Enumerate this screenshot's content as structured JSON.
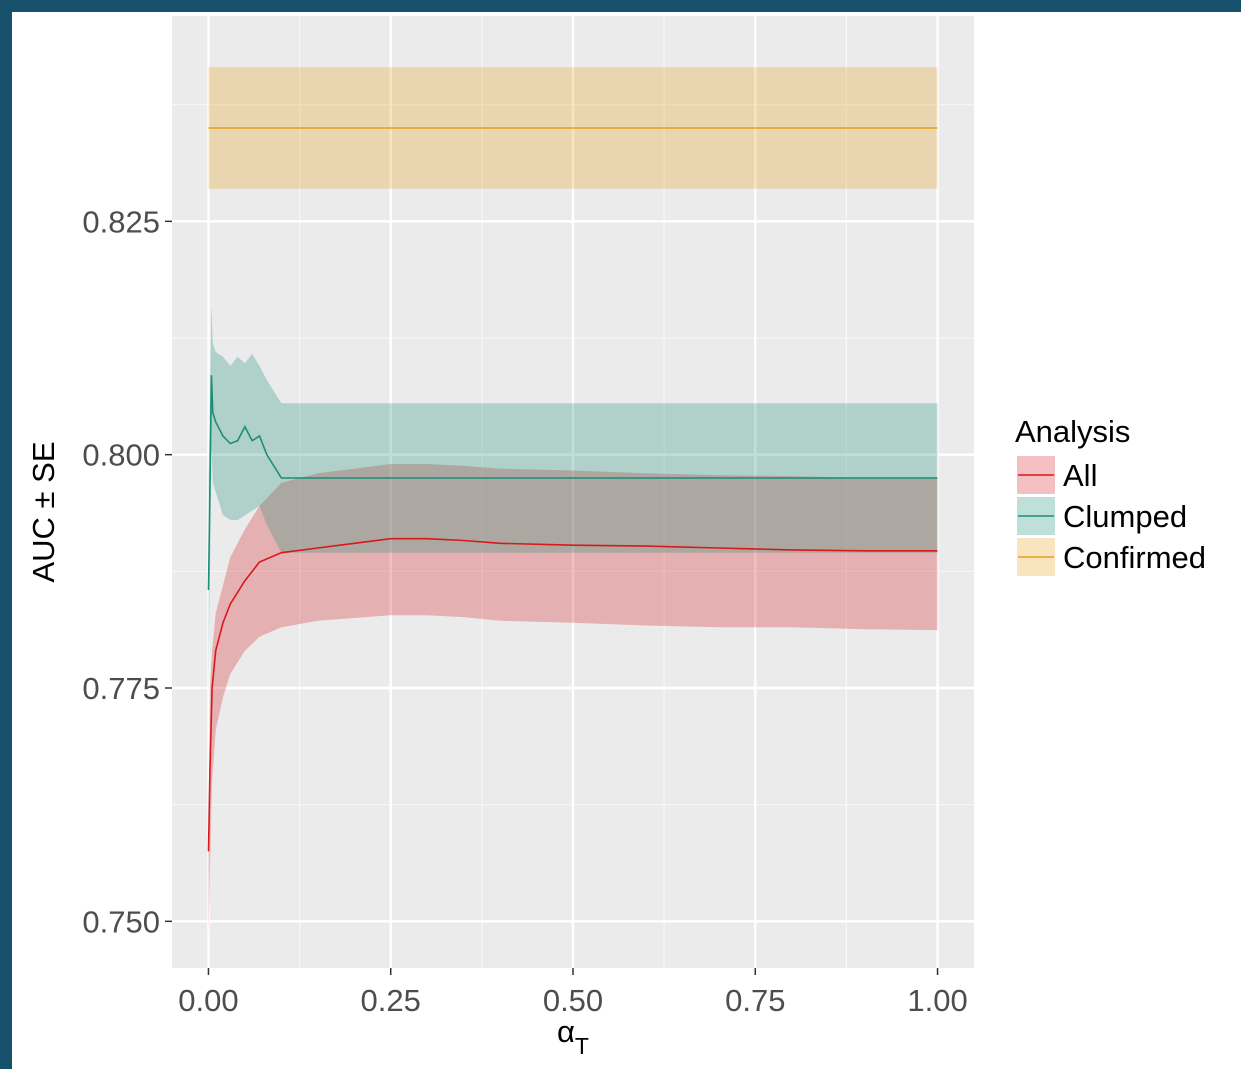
{
  "chart_data": {
    "type": "line",
    "title": "",
    "xlabel": "α",
    "xlabel_subscript": "T",
    "ylabel": "AUC ± SE",
    "xlim": [
      -0.05,
      1.05
    ],
    "ylim": [
      0.745,
      0.847
    ],
    "x_ticks": [
      0.0,
      0.25,
      0.5,
      0.75,
      1.0
    ],
    "x_tick_labels": [
      "0.00",
      "0.25",
      "0.50",
      "0.75",
      "1.00"
    ],
    "y_ticks": [
      0.75,
      0.775,
      0.8,
      0.825
    ],
    "y_tick_labels": [
      "0.750",
      "0.775",
      "0.800",
      "0.825"
    ],
    "grid": true,
    "legend": {
      "title": "Analysis",
      "placement": "right"
    },
    "series": [
      {
        "name": "All",
        "color": "#d7191c",
        "fill": "#f0b4b5",
        "x": [
          0.0,
          0.002,
          0.005,
          0.01,
          0.02,
          0.03,
          0.05,
          0.07,
          0.1,
          0.15,
          0.2,
          0.25,
          0.3,
          0.35,
          0.4,
          0.5,
          0.6,
          0.7,
          0.8,
          0.9,
          1.0
        ],
        "y": [
          0.7575,
          0.766,
          0.775,
          0.779,
          0.782,
          0.784,
          0.7865,
          0.7885,
          0.7895,
          0.79,
          0.7905,
          0.791,
          0.791,
          0.7908,
          0.7905,
          0.7903,
          0.7902,
          0.79,
          0.7898,
          0.7897,
          0.7897
        ],
        "upper": [
          0.76,
          0.775,
          0.779,
          0.783,
          0.786,
          0.789,
          0.792,
          0.7945,
          0.797,
          0.798,
          0.7985,
          0.799,
          0.799,
          0.7988,
          0.7985,
          0.7983,
          0.798,
          0.7978,
          0.7977,
          0.7975,
          0.7975
        ],
        "lower": [
          0.7485,
          0.7555,
          0.765,
          0.7705,
          0.774,
          0.7765,
          0.779,
          0.7805,
          0.7815,
          0.7822,
          0.7825,
          0.7828,
          0.7828,
          0.7826,
          0.7822,
          0.782,
          0.7817,
          0.7815,
          0.7815,
          0.7813,
          0.7812
        ]
      },
      {
        "name": "Clumped",
        "color": "#1a8e78",
        "fill": "#b5ddd7",
        "x": [
          0.0,
          0.002,
          0.004,
          0.006,
          0.01,
          0.02,
          0.03,
          0.04,
          0.05,
          0.06,
          0.07,
          0.08,
          0.1,
          0.15,
          0.2,
          0.3,
          0.5,
          0.75,
          1.0
        ],
        "y": [
          0.7855,
          0.796,
          0.8085,
          0.8045,
          0.8035,
          0.802,
          0.8012,
          0.8015,
          0.803,
          0.8015,
          0.802,
          0.8,
          0.7975,
          0.7975,
          0.7975,
          0.7975,
          0.7975,
          0.7975,
          0.7975
        ],
        "upper": [
          0.7975,
          0.806,
          0.816,
          0.812,
          0.811,
          0.8105,
          0.8095,
          0.8105,
          0.8098,
          0.8108,
          0.8095,
          0.808,
          0.8055,
          0.8055,
          0.8055,
          0.8055,
          0.8055,
          0.8055,
          0.8055
        ],
        "lower": [
          0.7735,
          0.7865,
          0.801,
          0.797,
          0.796,
          0.7935,
          0.793,
          0.793,
          0.7935,
          0.794,
          0.7945,
          0.7925,
          0.7895,
          0.7895,
          0.7895,
          0.7895,
          0.7895,
          0.7895,
          0.7895
        ]
      },
      {
        "name": "Confirmed",
        "color": "#e6a11a",
        "fill": "#ecdfb9",
        "x": [
          0.0,
          1.0
        ],
        "y": [
          0.835,
          0.835
        ],
        "upper": [
          0.8415,
          0.8415
        ],
        "lower": [
          0.8285,
          0.8285
        ]
      }
    ]
  }
}
